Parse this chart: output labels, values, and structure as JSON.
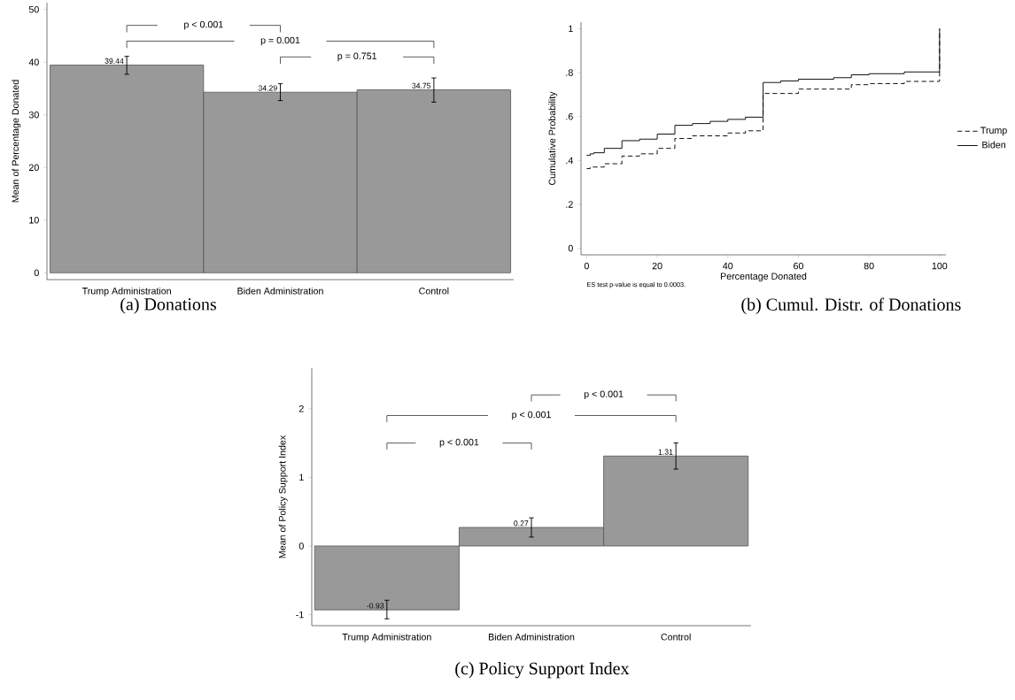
{
  "chart_data": [
    {
      "type": "bar",
      "title": "(a) Donations",
      "ylabel": "Mean of Percentage Donated",
      "categories": [
        "Trump Administration",
        "Biden Administration",
        "Control"
      ],
      "values": [
        39.44,
        34.29,
        34.75
      ],
      "color": "#999999",
      "errors": [
        [
          37.7,
          41.1
        ],
        [
          32.7,
          35.9
        ],
        [
          32.4,
          37.0
        ]
      ],
      "data_labels": true,
      "ylim": [
        -1.3,
        51.3
      ],
      "yticks": [
        0,
        10,
        20,
        30,
        40,
        50
      ],
      "annotations": [
        "p < 0.001",
        "p = 0.001",
        "p = 0.751"
      ]
    },
    {
      "type": "step",
      "title": "(b) Cumul. Distr. of Donations",
      "xlabel": "Percentage Donated",
      "ylabel": "Cumulative Probability",
      "series": [
        {
          "name": "Trump",
          "color": "#000000",
          "line_style": "dashed",
          "x": [
            0,
            1,
            5,
            10,
            15,
            20,
            25,
            30,
            40,
            45,
            50,
            60,
            75,
            80,
            90,
            100
          ],
          "values": [
            0.363,
            0.37,
            0.385,
            0.42,
            0.43,
            0.455,
            0.5,
            0.512,
            0.525,
            0.535,
            0.705,
            0.725,
            0.745,
            0.75,
            0.76,
            1.0
          ]
        },
        {
          "name": "Biden",
          "color": "#000000",
          "line_style": "solid",
          "x": [
            0,
            1,
            2,
            5,
            10,
            15,
            20,
            25,
            30,
            35,
            40,
            45,
            50,
            55,
            60,
            70,
            75,
            80,
            90,
            100
          ],
          "values": [
            0.423,
            0.43,
            0.435,
            0.455,
            0.49,
            0.497,
            0.52,
            0.56,
            0.568,
            0.578,
            0.587,
            0.597,
            0.755,
            0.762,
            0.77,
            0.777,
            0.79,
            0.795,
            0.803,
            1.0
          ]
        }
      ],
      "xlim": [
        -1.6,
        101.8
      ],
      "ylim": [
        -0.03,
        1.03
      ],
      "xticks": [
        0,
        20,
        40,
        60,
        80,
        100
      ],
      "yticks": [
        0,
        {
          "value": 0.2,
          "label": ".2"
        },
        {
          "value": 0.4,
          "label": ".4"
        },
        {
          "value": 0.6,
          "label": ".6"
        },
        {
          "value": 0.8,
          "label": ".8"
        },
        1
      ],
      "legend": "right",
      "annotations": [
        "ES test p-value is equal to 0.0003."
      ]
    },
    {
      "type": "bar",
      "title": "(c) Policy Support Index",
      "ylabel": "Mean of Policy Support Index",
      "categories": [
        "Trump Administration",
        "Biden Administration",
        "Control"
      ],
      "values": [
        -0.93,
        0.27,
        1.31
      ],
      "color": "#999999",
      "errors": [
        [
          -1.06,
          -0.79
        ],
        [
          0.13,
          0.41
        ],
        [
          1.12,
          1.5
        ]
      ],
      "data_labels": true,
      "ylim": [
        -1.16,
        2.59
      ],
      "yticks": [
        -1,
        0,
        1,
        2
      ],
      "annotations": [
        "p < 0.001",
        "p < 0.001",
        "p < 0.001"
      ]
    }
  ]
}
